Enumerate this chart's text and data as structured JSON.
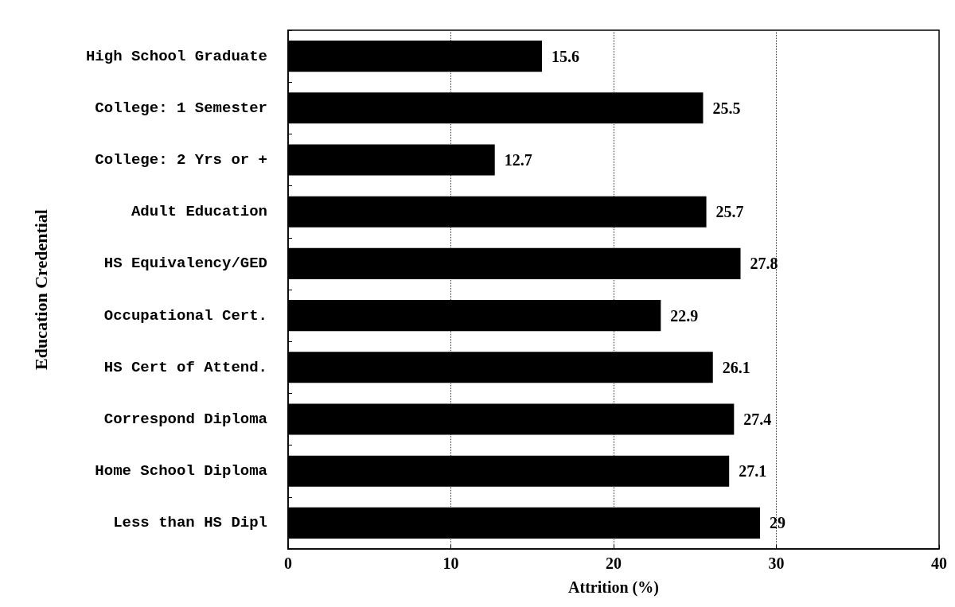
{
  "chart_data": {
    "type": "bar",
    "orientation": "horizontal",
    "xlabel": "Attrition (%)",
    "ylabel": "Education Credential",
    "categories": [
      "High School Graduate",
      "College: 1 Semester",
      "College: 2 Yrs or +",
      "Adult Education",
      "HS Equivalency/GED",
      "Occupational Cert.",
      "HS Cert of Attend.",
      "Correspond Diploma",
      "Home School Diploma",
      "Less than HS Dipl"
    ],
    "values": [
      15.6,
      25.5,
      12.7,
      25.7,
      27.8,
      22.9,
      26.1,
      27.4,
      27.1,
      29
    ],
    "color": "#000000",
    "xlim": [
      0,
      40
    ],
    "xticks": [
      0,
      10,
      20,
      30,
      40
    ],
    "grid": "x",
    "data_labels": true
  }
}
